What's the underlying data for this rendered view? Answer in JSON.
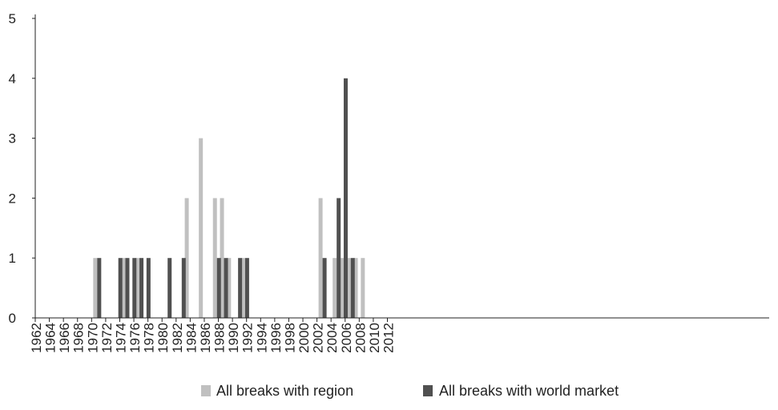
{
  "chart_data": {
    "type": "bar",
    "x_ticks": [
      "1962",
      "1964",
      "1966",
      "1968",
      "1970",
      "1972",
      "1974",
      "1976",
      "1978",
      "1980",
      "1982",
      "1984",
      "1986",
      "1988",
      "1990",
      "1992",
      "1994",
      "1996",
      "1998",
      "2000",
      "2002",
      "2004",
      "2006",
      "2008",
      "2010",
      "2012"
    ],
    "ylim": [
      0,
      5
    ],
    "y_ticks": [
      0,
      1,
      2,
      3,
      4,
      5
    ],
    "grid": false,
    "legend_position": "bottom",
    "series": [
      {
        "name": "All breaks with region",
        "color": "#c0c0c0",
        "points": [
          {
            "x": 1970,
            "y": 1
          },
          {
            "x": 1974,
            "y": 1
          },
          {
            "x": 1976,
            "y": 1
          },
          {
            "x": 1983,
            "y": 2
          },
          {
            "x": 1985,
            "y": 3
          },
          {
            "x": 1987,
            "y": 2
          },
          {
            "x": 1988,
            "y": 2
          },
          {
            "x": 1989,
            "y": 1
          },
          {
            "x": 1991,
            "y": 1
          },
          {
            "x": 2002,
            "y": 2
          },
          {
            "x": 2004,
            "y": 1
          },
          {
            "x": 2005,
            "y": 1
          },
          {
            "x": 2006,
            "y": 1
          },
          {
            "x": 2007,
            "y": 1
          },
          {
            "x": 2008,
            "y": 1
          }
        ]
      },
      {
        "name": "All breaks with world market",
        "color": "#505050",
        "points": [
          {
            "x": 1970,
            "y": 1
          },
          {
            "x": 1973,
            "y": 1
          },
          {
            "x": 1974,
            "y": 1
          },
          {
            "x": 1975,
            "y": 1
          },
          {
            "x": 1976,
            "y": 1
          },
          {
            "x": 1977,
            "y": 1
          },
          {
            "x": 1980,
            "y": 1
          },
          {
            "x": 1982,
            "y": 1
          },
          {
            "x": 1987,
            "y": 1
          },
          {
            "x": 1988,
            "y": 1
          },
          {
            "x": 1990,
            "y": 1
          },
          {
            "x": 1991,
            "y": 1
          },
          {
            "x": 2002,
            "y": 1
          },
          {
            "x": 2004,
            "y": 2
          },
          {
            "x": 2005,
            "y": 4
          },
          {
            "x": 2006,
            "y": 1
          }
        ]
      }
    ]
  }
}
